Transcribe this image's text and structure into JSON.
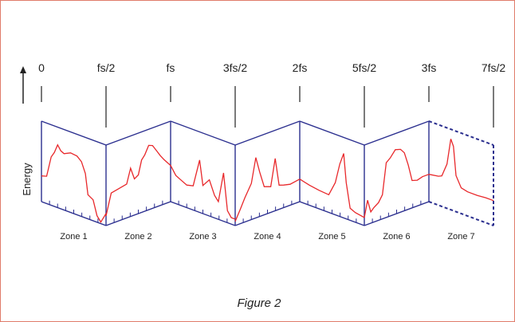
{
  "axis_labels": [
    "0",
    "fs/2",
    "fs",
    "3fs/2",
    "2fs",
    "5fs/2",
    "3fs",
    "7fs/2"
  ],
  "y_label": "Energy",
  "zones": [
    "Zone 1",
    "Zone 2",
    "Zone 3",
    "Zone 4",
    "Zone 5",
    "Zone 6",
    "Zone 7"
  ],
  "caption": "Figure 2",
  "colors": {
    "frame": "#e07b6a",
    "panel": "#2b2f8f",
    "signal": "#e8282b",
    "text": "#222222"
  }
}
